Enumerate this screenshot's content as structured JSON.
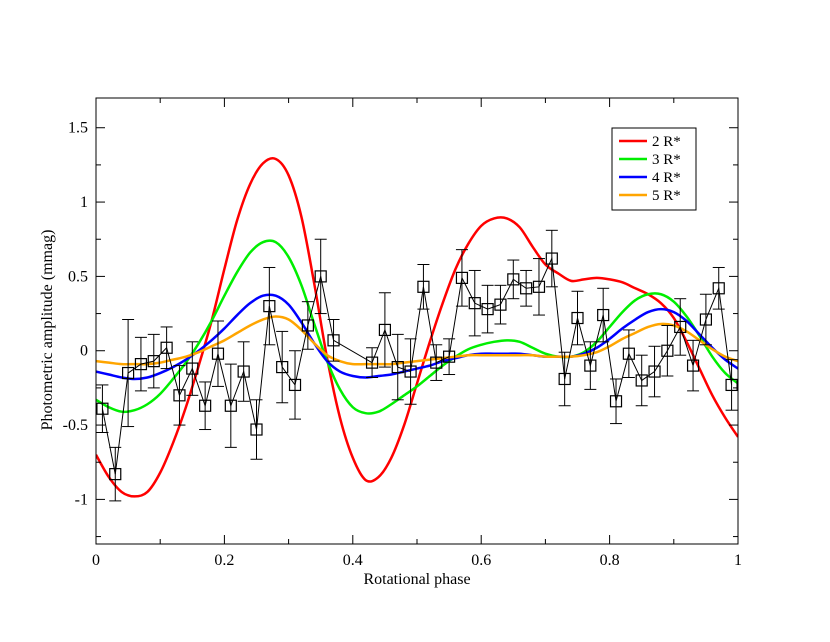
{
  "chart_data": {
    "type": "line",
    "title": "",
    "xlabel": "Rotational phase",
    "ylabel": "Photometric amplitude (mmag)",
    "xlim": [
      0,
      1
    ],
    "ylim": [
      -1.3,
      1.7
    ],
    "xticks": [
      0,
      0.2,
      0.4,
      0.6,
      0.8,
      1
    ],
    "xtick_labels": [
      "0",
      "0.2",
      "0.4",
      "0.6",
      "0.8",
      "1"
    ],
    "yticks": [
      -1,
      -0.5,
      0,
      0.5,
      1,
      1.5
    ],
    "ytick_labels": [
      "-1",
      "-0.5",
      "0",
      "0.5",
      "1",
      "1.5"
    ],
    "grid": false,
    "legend_position": "top-right",
    "observed": {
      "name": "data",
      "color": "#000000",
      "marker": "open-square",
      "x": [
        0.01,
        0.03,
        0.05,
        0.07,
        0.09,
        0.11,
        0.13,
        0.15,
        0.17,
        0.19,
        0.21,
        0.23,
        0.25,
        0.27,
        0.29,
        0.31,
        0.33,
        0.35,
        0.37,
        0.43,
        0.45,
        0.47,
        0.49,
        0.51,
        0.53,
        0.55,
        0.57,
        0.59,
        0.61,
        0.63,
        0.65,
        0.67,
        0.69,
        0.71,
        0.73,
        0.75,
        0.77,
        0.79,
        0.81,
        0.83,
        0.85,
        0.87,
        0.89,
        0.91,
        0.93,
        0.95,
        0.97,
        0.99
      ],
      "y": [
        -0.39,
        -0.83,
        -0.15,
        -0.09,
        -0.07,
        0.02,
        -0.3,
        -0.12,
        -0.37,
        -0.02,
        -0.37,
        -0.14,
        -0.53,
        0.3,
        -0.11,
        -0.23,
        0.17,
        0.5,
        0.07,
        -0.08,
        0.14,
        -0.11,
        -0.14,
        0.43,
        -0.08,
        -0.04,
        0.49,
        0.32,
        0.28,
        0.31,
        0.48,
        0.42,
        0.43,
        0.62,
        -0.19,
        0.22,
        -0.1,
        0.24,
        -0.34,
        -0.02,
        -0.2,
        -0.14,
        0.0,
        0.16,
        -0.1,
        0.21,
        0.42,
        -0.23
      ],
      "err": [
        0.16,
        0.18,
        0.36,
        0.18,
        0.18,
        0.14,
        0.2,
        0.18,
        0.16,
        0.22,
        0.28,
        0.2,
        0.2,
        0.26,
        0.24,
        0.23,
        0.16,
        0.25,
        0.14,
        0.1,
        0.25,
        0.22,
        0.22,
        0.15,
        0.12,
        0.12,
        0.19,
        0.22,
        0.16,
        0.13,
        0.13,
        0.12,
        0.19,
        0.19,
        0.18,
        0.18,
        0.16,
        0.18,
        0.15,
        0.16,
        0.17,
        0.17,
        0.17,
        0.19,
        0.17,
        0.17,
        0.14,
        0.17
      ]
    },
    "series": [
      {
        "name": "2 R*",
        "color": "#ff0000",
        "x": [
          0.0,
          0.02,
          0.04,
          0.06,
          0.08,
          0.1,
          0.12,
          0.14,
          0.16,
          0.18,
          0.2,
          0.22,
          0.24,
          0.26,
          0.28,
          0.3,
          0.32,
          0.34,
          0.36,
          0.38,
          0.4,
          0.42,
          0.44,
          0.46,
          0.48,
          0.5,
          0.52,
          0.54,
          0.56,
          0.58,
          0.6,
          0.62,
          0.64,
          0.66,
          0.68,
          0.7,
          0.72,
          0.74,
          0.76,
          0.78,
          0.8,
          0.82,
          0.84,
          0.86,
          0.88,
          0.9,
          0.92,
          0.94,
          0.96,
          0.98,
          1.0
        ],
        "y": [
          -0.7,
          -0.85,
          -0.95,
          -0.98,
          -0.95,
          -0.82,
          -0.62,
          -0.38,
          -0.1,
          0.2,
          0.55,
          0.88,
          1.12,
          1.26,
          1.29,
          1.18,
          0.9,
          0.45,
          -0.05,
          -0.45,
          -0.72,
          -0.87,
          -0.85,
          -0.72,
          -0.5,
          -0.22,
          0.06,
          0.32,
          0.55,
          0.72,
          0.84,
          0.89,
          0.89,
          0.83,
          0.7,
          0.58,
          0.52,
          0.47,
          0.48,
          0.49,
          0.48,
          0.46,
          0.42,
          0.38,
          0.32,
          0.22,
          0.06,
          -0.12,
          -0.3,
          -0.45,
          -0.58
        ]
      },
      {
        "name": "3 R*",
        "color": "#00ee00",
        "x": [
          0.0,
          0.02,
          0.04,
          0.06,
          0.08,
          0.1,
          0.12,
          0.14,
          0.16,
          0.18,
          0.2,
          0.22,
          0.24,
          0.26,
          0.28,
          0.3,
          0.32,
          0.34,
          0.36,
          0.38,
          0.4,
          0.42,
          0.44,
          0.46,
          0.48,
          0.5,
          0.52,
          0.54,
          0.56,
          0.58,
          0.6,
          0.62,
          0.64,
          0.66,
          0.68,
          0.7,
          0.72,
          0.74,
          0.76,
          0.78,
          0.8,
          0.82,
          0.84,
          0.86,
          0.88,
          0.9,
          0.92,
          0.94,
          0.96,
          0.98,
          1.0
        ],
        "y": [
          -0.33,
          -0.38,
          -0.41,
          -0.4,
          -0.36,
          -0.29,
          -0.19,
          -0.08,
          0.05,
          0.2,
          0.37,
          0.53,
          0.66,
          0.73,
          0.73,
          0.63,
          0.44,
          0.18,
          -0.07,
          -0.26,
          -0.38,
          -0.42,
          -0.41,
          -0.36,
          -0.3,
          -0.24,
          -0.17,
          -0.1,
          -0.04,
          0.01,
          0.04,
          0.06,
          0.07,
          0.06,
          0.02,
          -0.02,
          -0.04,
          -0.04,
          -0.01,
          0.06,
          0.16,
          0.26,
          0.34,
          0.38,
          0.38,
          0.33,
          0.23,
          0.1,
          -0.04,
          -0.15,
          -0.22
        ]
      },
      {
        "name": "4 R*",
        "color": "#0000ff",
        "x": [
          0.0,
          0.02,
          0.04,
          0.06,
          0.08,
          0.1,
          0.12,
          0.14,
          0.16,
          0.18,
          0.2,
          0.22,
          0.24,
          0.26,
          0.28,
          0.3,
          0.32,
          0.34,
          0.36,
          0.38,
          0.4,
          0.42,
          0.44,
          0.46,
          0.48,
          0.5,
          0.52,
          0.54,
          0.56,
          0.58,
          0.6,
          0.62,
          0.64,
          0.66,
          0.68,
          0.7,
          0.72,
          0.74,
          0.76,
          0.78,
          0.8,
          0.82,
          0.84,
          0.86,
          0.88,
          0.9,
          0.92,
          0.94,
          0.96,
          0.98,
          1.0
        ],
        "y": [
          -0.14,
          -0.16,
          -0.18,
          -0.19,
          -0.18,
          -0.15,
          -0.11,
          -0.06,
          0.0,
          0.07,
          0.15,
          0.24,
          0.32,
          0.37,
          0.37,
          0.31,
          0.19,
          0.05,
          -0.07,
          -0.14,
          -0.17,
          -0.18,
          -0.17,
          -0.16,
          -0.14,
          -0.12,
          -0.1,
          -0.07,
          -0.05,
          -0.03,
          -0.02,
          -0.02,
          -0.02,
          -0.02,
          -0.03,
          -0.04,
          -0.04,
          -0.04,
          -0.02,
          0.02,
          0.08,
          0.15,
          0.21,
          0.26,
          0.28,
          0.26,
          0.2,
          0.11,
          0.02,
          -0.06,
          -0.12
        ]
      },
      {
        "name": "5 R*",
        "color": "#ffa500",
        "x": [
          0.0,
          0.02,
          0.04,
          0.06,
          0.08,
          0.1,
          0.12,
          0.14,
          0.16,
          0.18,
          0.2,
          0.22,
          0.24,
          0.26,
          0.28,
          0.3,
          0.32,
          0.34,
          0.36,
          0.38,
          0.4,
          0.42,
          0.44,
          0.46,
          0.48,
          0.5,
          0.52,
          0.54,
          0.56,
          0.58,
          0.6,
          0.62,
          0.64,
          0.66,
          0.68,
          0.7,
          0.72,
          0.74,
          0.76,
          0.78,
          0.8,
          0.82,
          0.84,
          0.86,
          0.88,
          0.9,
          0.92,
          0.94,
          0.96,
          0.98,
          1.0
        ],
        "y": [
          -0.07,
          -0.08,
          -0.09,
          -0.09,
          -0.09,
          -0.08,
          -0.06,
          -0.04,
          -0.01,
          0.03,
          0.07,
          0.12,
          0.17,
          0.21,
          0.23,
          0.21,
          0.14,
          0.05,
          -0.03,
          -0.07,
          -0.09,
          -0.09,
          -0.09,
          -0.09,
          -0.08,
          -0.07,
          -0.06,
          -0.05,
          -0.04,
          -0.03,
          -0.03,
          -0.03,
          -0.03,
          -0.03,
          -0.03,
          -0.04,
          -0.04,
          -0.04,
          -0.03,
          -0.01,
          0.03,
          0.08,
          0.12,
          0.16,
          0.18,
          0.17,
          0.13,
          0.07,
          0.01,
          -0.04,
          -0.07
        ]
      }
    ]
  }
}
